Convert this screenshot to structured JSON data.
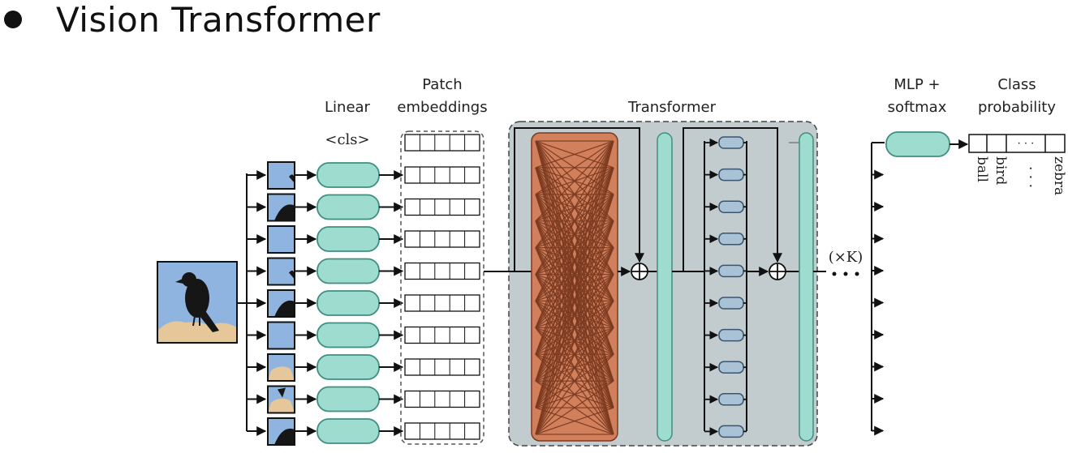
{
  "slide": {
    "title": "Vision Transformer"
  },
  "labels": {
    "linear": "Linear",
    "cls_token": "<cls>",
    "patch_embeddings_line1": "Patch",
    "patch_embeddings_line2": "embeddings",
    "transformer": "Transformer",
    "repeat": "(×K)",
    "mlp_line1": "MLP +",
    "mlp_line2": "softmax",
    "class_prob_line1": "Class",
    "class_prob_line2": "probability",
    "ellipsis": "· · ·"
  },
  "classes": [
    "ball",
    "bird",
    "· · ·",
    "zebra"
  ],
  "colors": {
    "teal": "#9fdcd0",
    "teal_stroke": "#3f8f80",
    "transformer_bg": "#c2cbcd",
    "attention_fill": "#d2805c",
    "attention_lines": "#7a3a20",
    "mlp_unit": "#a9c2d5",
    "sky": "#8fb4e0",
    "rock": "#e6c79a"
  },
  "icons": {
    "bird_image": "bird-photo-icon",
    "bullet": "bullet-icon"
  },
  "patch_count": 9
}
